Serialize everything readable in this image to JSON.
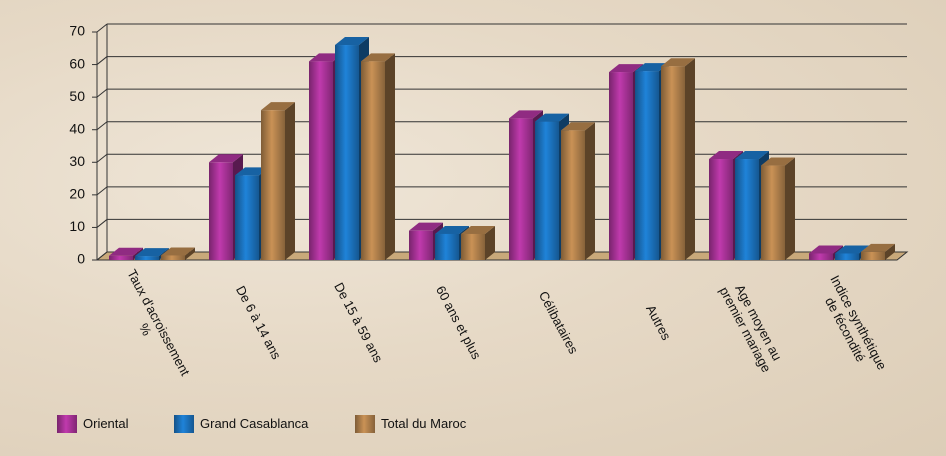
{
  "chart_data": {
    "type": "bar3d",
    "categories": [
      "Taux d'acroissement %",
      "De 6 à 14 ans",
      "De 15 à 59 ans",
      "60 ans et plus",
      "Célibataires",
      "Autres",
      "Age moyen au premier mariage",
      "Indice synthétique de fécondité"
    ],
    "series": [
      {
        "name": "Oriental",
        "color": "#a03090",
        "values": [
          1.3,
          30,
          61,
          9,
          43.5,
          57.7,
          31,
          2
        ]
      },
      {
        "name": "Grand Casablanca",
        "color": "#1a6db5",
        "values": [
          1.2,
          26,
          66,
          8,
          42.5,
          58,
          31,
          2
        ]
      },
      {
        "name": "Total du Maroc",
        "color": "#a87a48",
        "values": [
          1.4,
          46,
          61,
          8,
          39.8,
          59.5,
          29,
          2.5
        ]
      }
    ],
    "ylim": [
      0,
      70
    ],
    "yticks": [
      0,
      10,
      20,
      30,
      40,
      50,
      60,
      70
    ],
    "grid": true,
    "legend": "bottom-left"
  }
}
